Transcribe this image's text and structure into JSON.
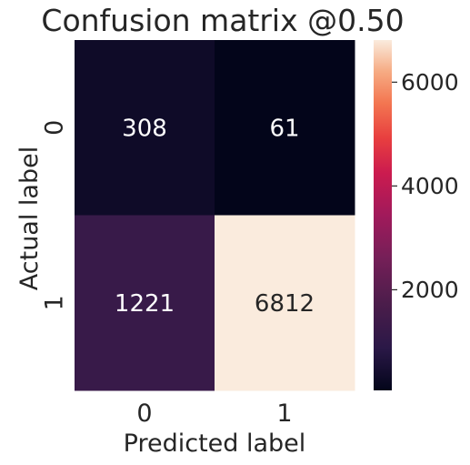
{
  "chart_data": {
    "type": "heatmap",
    "title": "Confusion matrix @0.50",
    "xlabel": "Predicted label",
    "ylabel": "Actual label",
    "x_categories": [
      "0",
      "1"
    ],
    "y_categories": [
      "0",
      "1"
    ],
    "values": [
      [
        308,
        61
      ],
      [
        1221,
        6812
      ]
    ],
    "value_labels": [
      [
        "308",
        "61"
      ],
      [
        "1221",
        "6812"
      ]
    ],
    "colormap": "rocket",
    "vmin": 61,
    "vmax": 6812,
    "colorbar": {
      "ticks": [
        2000,
        4000,
        6000
      ],
      "tick_labels": [
        "2000",
        "4000",
        "6000"
      ]
    },
    "colors": {
      "low_text": "#ffffff",
      "high_text": "#262626",
      "axis_text": "#262626"
    }
  }
}
